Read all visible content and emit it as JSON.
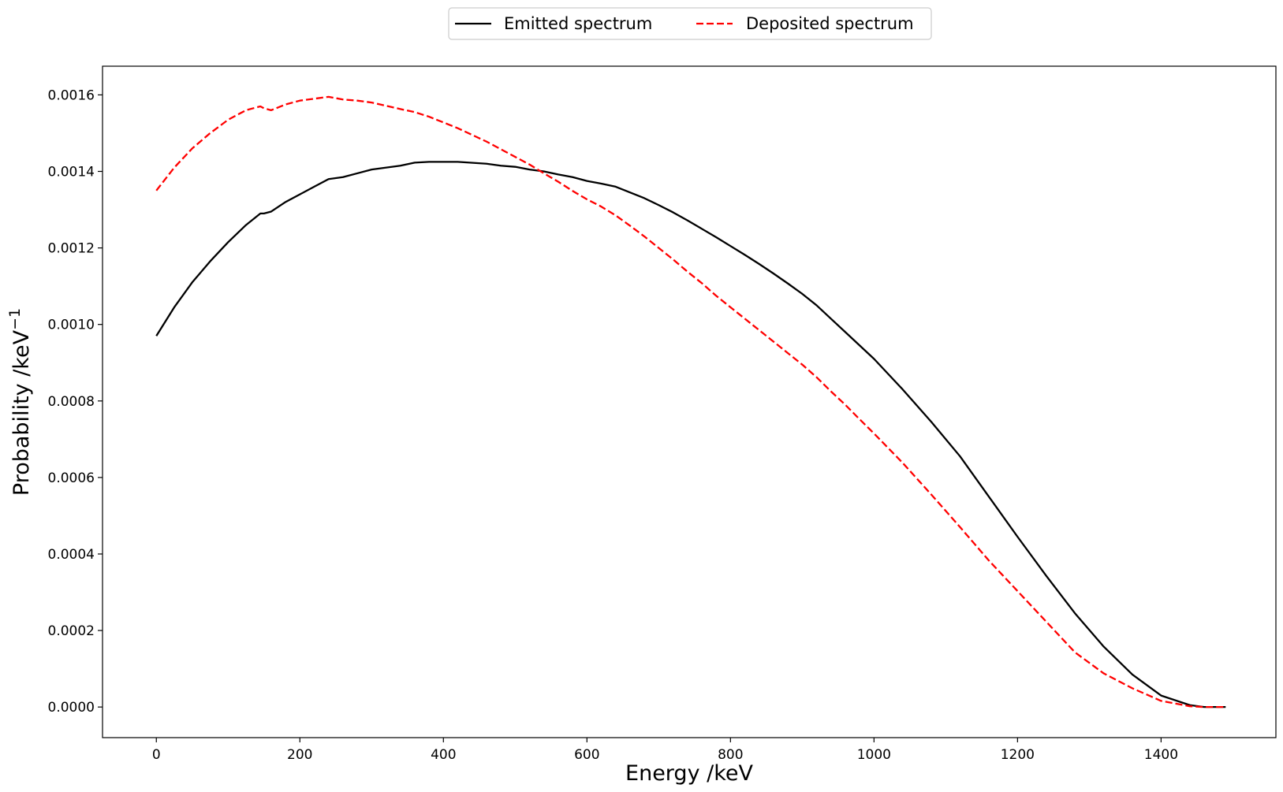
{
  "chart_data": {
    "type": "line",
    "title": "",
    "xlabel": "Energy /keV",
    "ylabel": "Probability /keV",
    "ylabel_superscript": "−1",
    "xlim": [
      -75,
      1560
    ],
    "ylim": [
      -8e-05,
      0.001675
    ],
    "xticks": [
      0,
      200,
      400,
      600,
      800,
      1000,
      1200,
      1400
    ],
    "xtick_labels": [
      "0",
      "200",
      "400",
      "600",
      "800",
      "1000",
      "1200",
      "1400"
    ],
    "yticks": [
      0,
      0.0002,
      0.0004,
      0.0006,
      0.0008,
      0.001,
      0.0012,
      0.0014,
      0.0016
    ],
    "ytick_labels": [
      "0.0000",
      "0.0002",
      "0.0004",
      "0.0006",
      "0.0008",
      "0.0010",
      "0.0012",
      "0.0014",
      "0.0016"
    ],
    "grid": false,
    "legend": {
      "placement": "top-center, outside plot",
      "columns": 2
    },
    "series": [
      {
        "name": "Emitted spectrum",
        "color": "#000000",
        "style": "solid",
        "x": [
          0,
          25,
          50,
          75,
          100,
          125,
          145,
          150,
          160,
          180,
          200,
          220,
          240,
          260,
          280,
          300,
          340,
          360,
          380,
          400,
          420,
          460,
          480,
          500,
          520,
          540,
          560,
          580,
          600,
          620,
          640,
          660,
          680,
          700,
          720,
          740,
          760,
          780,
          800,
          820,
          840,
          860,
          880,
          900,
          920,
          940,
          960,
          980,
          1000,
          1040,
          1080,
          1120,
          1160,
          1200,
          1240,
          1280,
          1320,
          1360,
          1400,
          1440,
          1460,
          1475,
          1490
        ],
        "y": [
          0.00097,
          0.001045,
          0.00111,
          0.001165,
          0.001215,
          0.00126,
          0.00129,
          0.00129,
          0.001295,
          0.00132,
          0.00134,
          0.00136,
          0.00138,
          0.001385,
          0.001395,
          0.001405,
          0.001415,
          0.001423,
          0.001425,
          0.001425,
          0.001425,
          0.00142,
          0.001415,
          0.001412,
          0.001405,
          0.0014,
          0.001392,
          0.001385,
          0.001375,
          0.001368,
          0.00136,
          0.001345,
          0.00133,
          0.001312,
          0.001293,
          0.001272,
          0.00125,
          0.001228,
          0.001205,
          0.001182,
          0.001158,
          0.001133,
          0.001107,
          0.00108,
          0.00105,
          0.001015,
          0.00098,
          0.000945,
          0.00091,
          0.00083,
          0.000745,
          0.000655,
          0.00055,
          0.000445,
          0.000343,
          0.000245,
          0.000158,
          8.5e-05,
          3e-05,
          5e-06,
          0.0,
          0.0,
          0.0
        ]
      },
      {
        "name": "Deposited spectrum",
        "color": "#ff0000",
        "style": "dashed",
        "x": [
          0,
          25,
          50,
          75,
          100,
          125,
          145,
          150,
          160,
          180,
          200,
          220,
          240,
          260,
          280,
          300,
          340,
          360,
          380,
          400,
          420,
          460,
          480,
          500,
          520,
          540,
          560,
          580,
          600,
          620,
          640,
          660,
          680,
          700,
          720,
          740,
          760,
          780,
          800,
          820,
          840,
          860,
          880,
          900,
          920,
          940,
          960,
          980,
          1000,
          1040,
          1080,
          1120,
          1160,
          1200,
          1240,
          1280,
          1320,
          1360,
          1400,
          1440,
          1460,
          1475,
          1490
        ],
        "y": [
          0.00135,
          0.00141,
          0.00146,
          0.0015,
          0.001535,
          0.00156,
          0.00157,
          0.001565,
          0.00156,
          0.001575,
          0.001585,
          0.00159,
          0.001595,
          0.001588,
          0.001585,
          0.00158,
          0.001563,
          0.001555,
          0.001543,
          0.001528,
          0.001513,
          0.001478,
          0.001458,
          0.001438,
          0.001418,
          0.001395,
          0.001373,
          0.001349,
          0.001327,
          0.001308,
          0.001285,
          0.001258,
          0.00123,
          0.0012,
          0.00117,
          0.001138,
          0.001108,
          0.001075,
          0.001045,
          0.001015,
          0.000985,
          0.000955,
          0.000925,
          0.000895,
          0.000862,
          0.000825,
          0.00079,
          0.000752,
          0.000715,
          0.000638,
          0.000555,
          0.00047,
          0.000383,
          0.000303,
          0.000223,
          0.000143,
          8.8e-05,
          4.9e-05,
          1.6e-05,
          2e-06,
          0.0,
          0.0,
          0.0
        ]
      }
    ]
  }
}
